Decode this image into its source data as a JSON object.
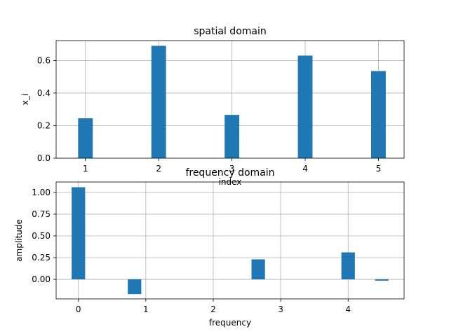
{
  "chart_data": [
    {
      "type": "bar",
      "title": "spatial domain",
      "xlabel": "index",
      "ylabel": "x_i",
      "x": [
        1,
        2,
        3,
        4,
        5
      ],
      "values": [
        0.245,
        0.69,
        0.266,
        0.63,
        0.535
      ],
      "xlim": [
        0.6,
        5.35
      ],
      "ylim": [
        0.0,
        0.722
      ],
      "xticks": [
        1,
        2,
        3,
        4,
        5
      ],
      "xtick_labels": [
        "1",
        "2",
        "3",
        "4",
        "5"
      ],
      "yticks": [
        0.0,
        0.2,
        0.4,
        0.6
      ],
      "ytick_labels": [
        "0.0",
        "0.2",
        "0.4",
        "0.6"
      ],
      "bar_width": 0.2,
      "grid": true,
      "color": "#1f77b4"
    },
    {
      "type": "bar",
      "title": "frequency domain",
      "xlabel": "frequency",
      "ylabel": "amplitude",
      "x": [
        0,
        0.833,
        2.667,
        4.0,
        4.5
      ],
      "values": [
        1.06,
        -0.17,
        0.23,
        0.31,
        -0.015
      ],
      "xlim": [
        -0.33,
        4.83
      ],
      "ylim": [
        -0.225,
        1.12
      ],
      "xticks": [
        0,
        1,
        2,
        3,
        4
      ],
      "xtick_labels": [
        "0",
        "1",
        "2",
        "3",
        "4"
      ],
      "yticks": [
        0.0,
        0.25,
        0.5,
        0.75,
        1.0
      ],
      "ytick_labels": [
        "0.00",
        "0.25",
        "0.50",
        "0.75",
        "1.00"
      ],
      "bar_width": 0.2,
      "grid": true,
      "color": "#1f77b4"
    }
  ]
}
